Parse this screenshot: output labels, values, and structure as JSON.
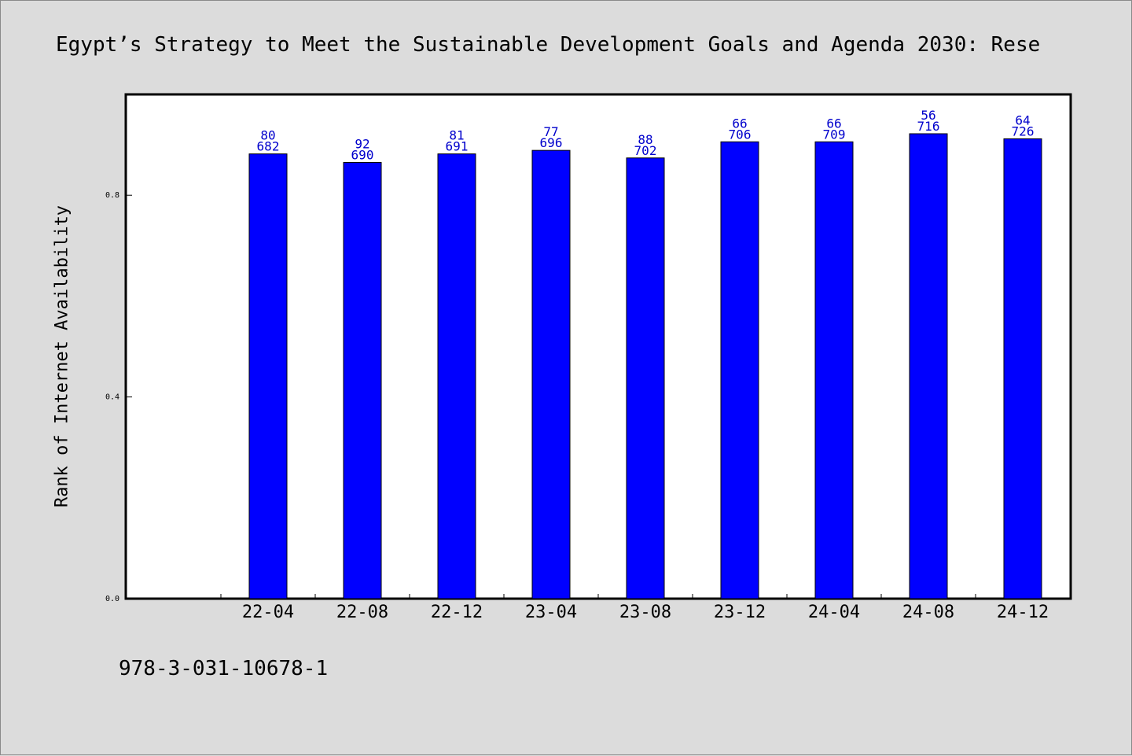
{
  "chart_data": {
    "type": "bar",
    "title": "Egypt’s Strategy to Meet the Sustainable Development Goals and Agenda 2030: Rese",
    "ylabel": "Rank of Internet Availability",
    "xlabel": "",
    "categories": [
      "22-04",
      "22-08",
      "22-12",
      "23-04",
      "23-08",
      "23-12",
      "24-04",
      "24-08",
      "24-12"
    ],
    "values": [
      0.882,
      0.865,
      0.882,
      0.889,
      0.874,
      0.906,
      0.906,
      0.922,
      0.912
    ],
    "label_top": [
      "80",
      "92",
      "81",
      "77",
      "88",
      "66",
      "66",
      "56",
      "64"
    ],
    "label_bottom": [
      "682",
      "690",
      "691",
      "696",
      "702",
      "706",
      "709",
      "716",
      "726"
    ],
    "ylim": [
      0.0,
      1.0
    ],
    "yticks": [
      0.0,
      0.4,
      0.8
    ],
    "ytick_labels": [
      "0.0",
      "0.4",
      "0.8"
    ],
    "grid": false,
    "bar_color": "#0000ff",
    "label_color": "#0000cc"
  },
  "footer": {
    "isbn": "978-3-031-10678-1"
  }
}
